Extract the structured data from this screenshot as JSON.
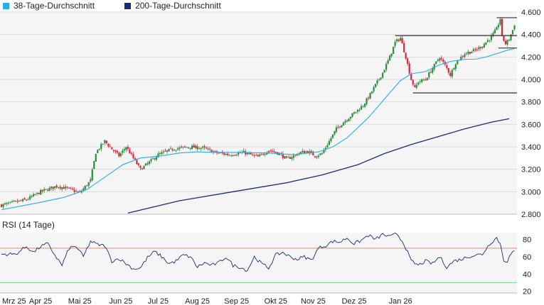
{
  "legend": {
    "items": [
      {
        "label": "38-Tage-Durchschnitt",
        "color": "#29aee8"
      },
      {
        "label": "200-Tage-Durchschnitt",
        "color": "#1b2c6b"
      }
    ]
  },
  "rsi_title": "RSI (14 Tage)",
  "chart_data": [
    {
      "type": "candlestick",
      "title": "",
      "y_ticks": [
        "4.600",
        "4.400",
        "4.200",
        "4.000",
        "3.800",
        "3.600",
        "3.400",
        "3.200",
        "3.000",
        "2.800"
      ],
      "ylim": [
        2800,
        4600
      ],
      "x_ticks": [
        "Mrz 25",
        "Apr 25",
        "Mai 25",
        "Jun 25",
        "Jul 25",
        "Aug 25",
        "Sep 25",
        "Okt 25",
        "Nov 25",
        "Dez 25",
        "Jan 26"
      ],
      "grid": true,
      "legend_position": "top-left",
      "colors": {
        "up": "#2e8b3e",
        "down": "#d8283c",
        "ma38": "#29aee8",
        "ma200": "#1b2c6b",
        "support": "#333333"
      },
      "close_path": [
        [
          0,
          2880
        ],
        [
          14,
          2930
        ],
        [
          22,
          3000
        ],
        [
          31,
          3050
        ],
        [
          37,
          3030
        ],
        [
          44,
          2990
        ],
        [
          50,
          3100
        ],
        [
          53,
          3350
        ],
        [
          58,
          3450
        ],
        [
          62,
          3380
        ],
        [
          66,
          3320
        ],
        [
          70,
          3400
        ],
        [
          74,
          3300
        ],
        [
          78,
          3200
        ],
        [
          82,
          3250
        ],
        [
          88,
          3330
        ],
        [
          96,
          3380
        ],
        [
          105,
          3400
        ],
        [
          113,
          3390
        ],
        [
          120,
          3350
        ],
        [
          128,
          3330
        ],
        [
          136,
          3350
        ],
        [
          144,
          3310
        ],
        [
          150,
          3370
        ],
        [
          156,
          3340
        ],
        [
          160,
          3290
        ],
        [
          164,
          3320
        ],
        [
          168,
          3350
        ],
        [
          172,
          3360
        ],
        [
          176,
          3320
        ],
        [
          180,
          3340
        ],
        [
          184,
          3450
        ],
        [
          188,
          3560
        ],
        [
          192,
          3620
        ],
        [
          198,
          3700
        ],
        [
          203,
          3770
        ],
        [
          206,
          3840
        ],
        [
          210,
          3950
        ],
        [
          214,
          4060
        ],
        [
          218,
          4200
        ],
        [
          221,
          4330
        ],
        [
          224,
          4370
        ],
        [
          227,
          4200
        ],
        [
          230,
          4000
        ],
        [
          232,
          3920
        ],
        [
          234,
          3980
        ],
        [
          238,
          4000
        ],
        [
          242,
          4100
        ],
        [
          246,
          4200
        ],
        [
          250,
          4100
        ],
        [
          252,
          4040
        ],
        [
          255,
          4150
        ],
        [
          260,
          4230
        ],
        [
          266,
          4260
        ],
        [
          270,
          4300
        ],
        [
          275,
          4380
        ],
        [
          278,
          4450
        ],
        [
          280,
          4540
        ],
        [
          281,
          4380
        ],
        [
          283,
          4320
        ],
        [
          285,
          4360
        ],
        [
          287,
          4440
        ],
        [
          288,
          4490
        ]
      ],
      "moving_averages": [
        {
          "name": "38-Tage-Durchschnitt",
          "points": [
            [
              0,
              2840
            ],
            [
              20,
              2900
            ],
            [
              35,
              2950
            ],
            [
              48,
              3020
            ],
            [
              58,
              3130
            ],
            [
              68,
              3240
            ],
            [
              78,
              3300
            ],
            [
              90,
              3320
            ],
            [
              100,
              3345
            ],
            [
              110,
              3355
            ],
            [
              120,
              3350
            ],
            [
              135,
              3350
            ],
            [
              150,
              3345
            ],
            [
              165,
              3330
            ],
            [
              178,
              3355
            ],
            [
              186,
              3400
            ],
            [
              194,
              3480
            ],
            [
              200,
              3570
            ],
            [
              206,
              3660
            ],
            [
              212,
              3770
            ],
            [
              218,
              3880
            ],
            [
              224,
              3990
            ],
            [
              230,
              4050
            ],
            [
              238,
              4070
            ],
            [
              246,
              4130
            ],
            [
              252,
              4160
            ],
            [
              260,
              4180
            ],
            [
              266,
              4180
            ],
            [
              272,
              4200
            ],
            [
              278,
              4230
            ],
            [
              284,
              4260
            ],
            [
              288,
              4275
            ]
          ]
        },
        {
          "name": "200-Tage-Durchschnitt",
          "points": [
            [
              71,
              2810
            ],
            [
              100,
              2920
            ],
            [
              130,
              3000
            ],
            [
              160,
              3080
            ],
            [
              180,
              3150
            ],
            [
              200,
              3240
            ],
            [
              215,
              3340
            ],
            [
              230,
              3420
            ],
            [
              245,
              3490
            ],
            [
              260,
              3560
            ],
            [
              275,
              3620
            ],
            [
              285,
              3650
            ]
          ]
        }
      ],
      "support_lines": [
        {
          "value": 4550,
          "from": 278,
          "to": 310
        },
        {
          "value": 4390,
          "from": 221,
          "to": 310
        },
        {
          "value": 4280,
          "from": 279,
          "to": 310
        },
        {
          "value": 3880,
          "from": 231,
          "to": 310
        }
      ]
    },
    {
      "type": "line",
      "title": "RSI (14 Tage)",
      "y_ticks": [
        "80",
        "60",
        "40",
        "20"
      ],
      "ylim": [
        18,
        88
      ],
      "reference_lines": [
        {
          "value": 70,
          "color": "#f08080"
        },
        {
          "value": 30,
          "color": "#7fcf7f"
        }
      ],
      "values_path": [
        [
          0,
          63
        ],
        [
          8,
          63
        ],
        [
          14,
          72
        ],
        [
          18,
          65
        ],
        [
          22,
          72
        ],
        [
          26,
          75
        ],
        [
          30,
          62
        ],
        [
          34,
          50
        ],
        [
          38,
          70
        ],
        [
          42,
          72
        ],
        [
          46,
          60
        ],
        [
          50,
          78
        ],
        [
          54,
          74
        ],
        [
          58,
          73
        ],
        [
          62,
          55
        ],
        [
          66,
          58
        ],
        [
          70,
          52
        ],
        [
          74,
          46
        ],
        [
          78,
          47
        ],
        [
          82,
          59
        ],
        [
          86,
          66
        ],
        [
          90,
          60
        ],
        [
          94,
          52
        ],
        [
          98,
          55
        ],
        [
          102,
          62
        ],
        [
          106,
          60
        ],
        [
          110,
          48
        ],
        [
          114,
          53
        ],
        [
          118,
          50
        ],
        [
          122,
          53
        ],
        [
          126,
          60
        ],
        [
          130,
          50
        ],
        [
          134,
          48
        ],
        [
          138,
          44
        ],
        [
          142,
          60
        ],
        [
          146,
          52
        ],
        [
          150,
          47
        ],
        [
          154,
          62
        ],
        [
          158,
          65
        ],
        [
          162,
          60
        ],
        [
          166,
          57
        ],
        [
          170,
          60
        ],
        [
          174,
          56
        ],
        [
          178,
          70
        ],
        [
          182,
          73
        ],
        [
          186,
          78
        ],
        [
          190,
          77
        ],
        [
          194,
          82
        ],
        [
          198,
          75
        ],
        [
          202,
          79
        ],
        [
          206,
          85
        ],
        [
          210,
          80
        ],
        [
          214,
          86
        ],
        [
          218,
          83
        ],
        [
          222,
          87
        ],
        [
          226,
          75
        ],
        [
          230,
          55
        ],
        [
          234,
          50
        ],
        [
          238,
          55
        ],
        [
          242,
          52
        ],
        [
          246,
          60
        ],
        [
          250,
          48
        ],
        [
          254,
          55
        ],
        [
          258,
          57
        ],
        [
          262,
          60
        ],
        [
          266,
          62
        ],
        [
          270,
          63
        ],
        [
          274,
          75
        ],
        [
          278,
          82
        ],
        [
          280,
          75
        ],
        [
          282,
          56
        ],
        [
          284,
          55
        ],
        [
          286,
          63
        ],
        [
          288,
          66
        ]
      ]
    }
  ]
}
